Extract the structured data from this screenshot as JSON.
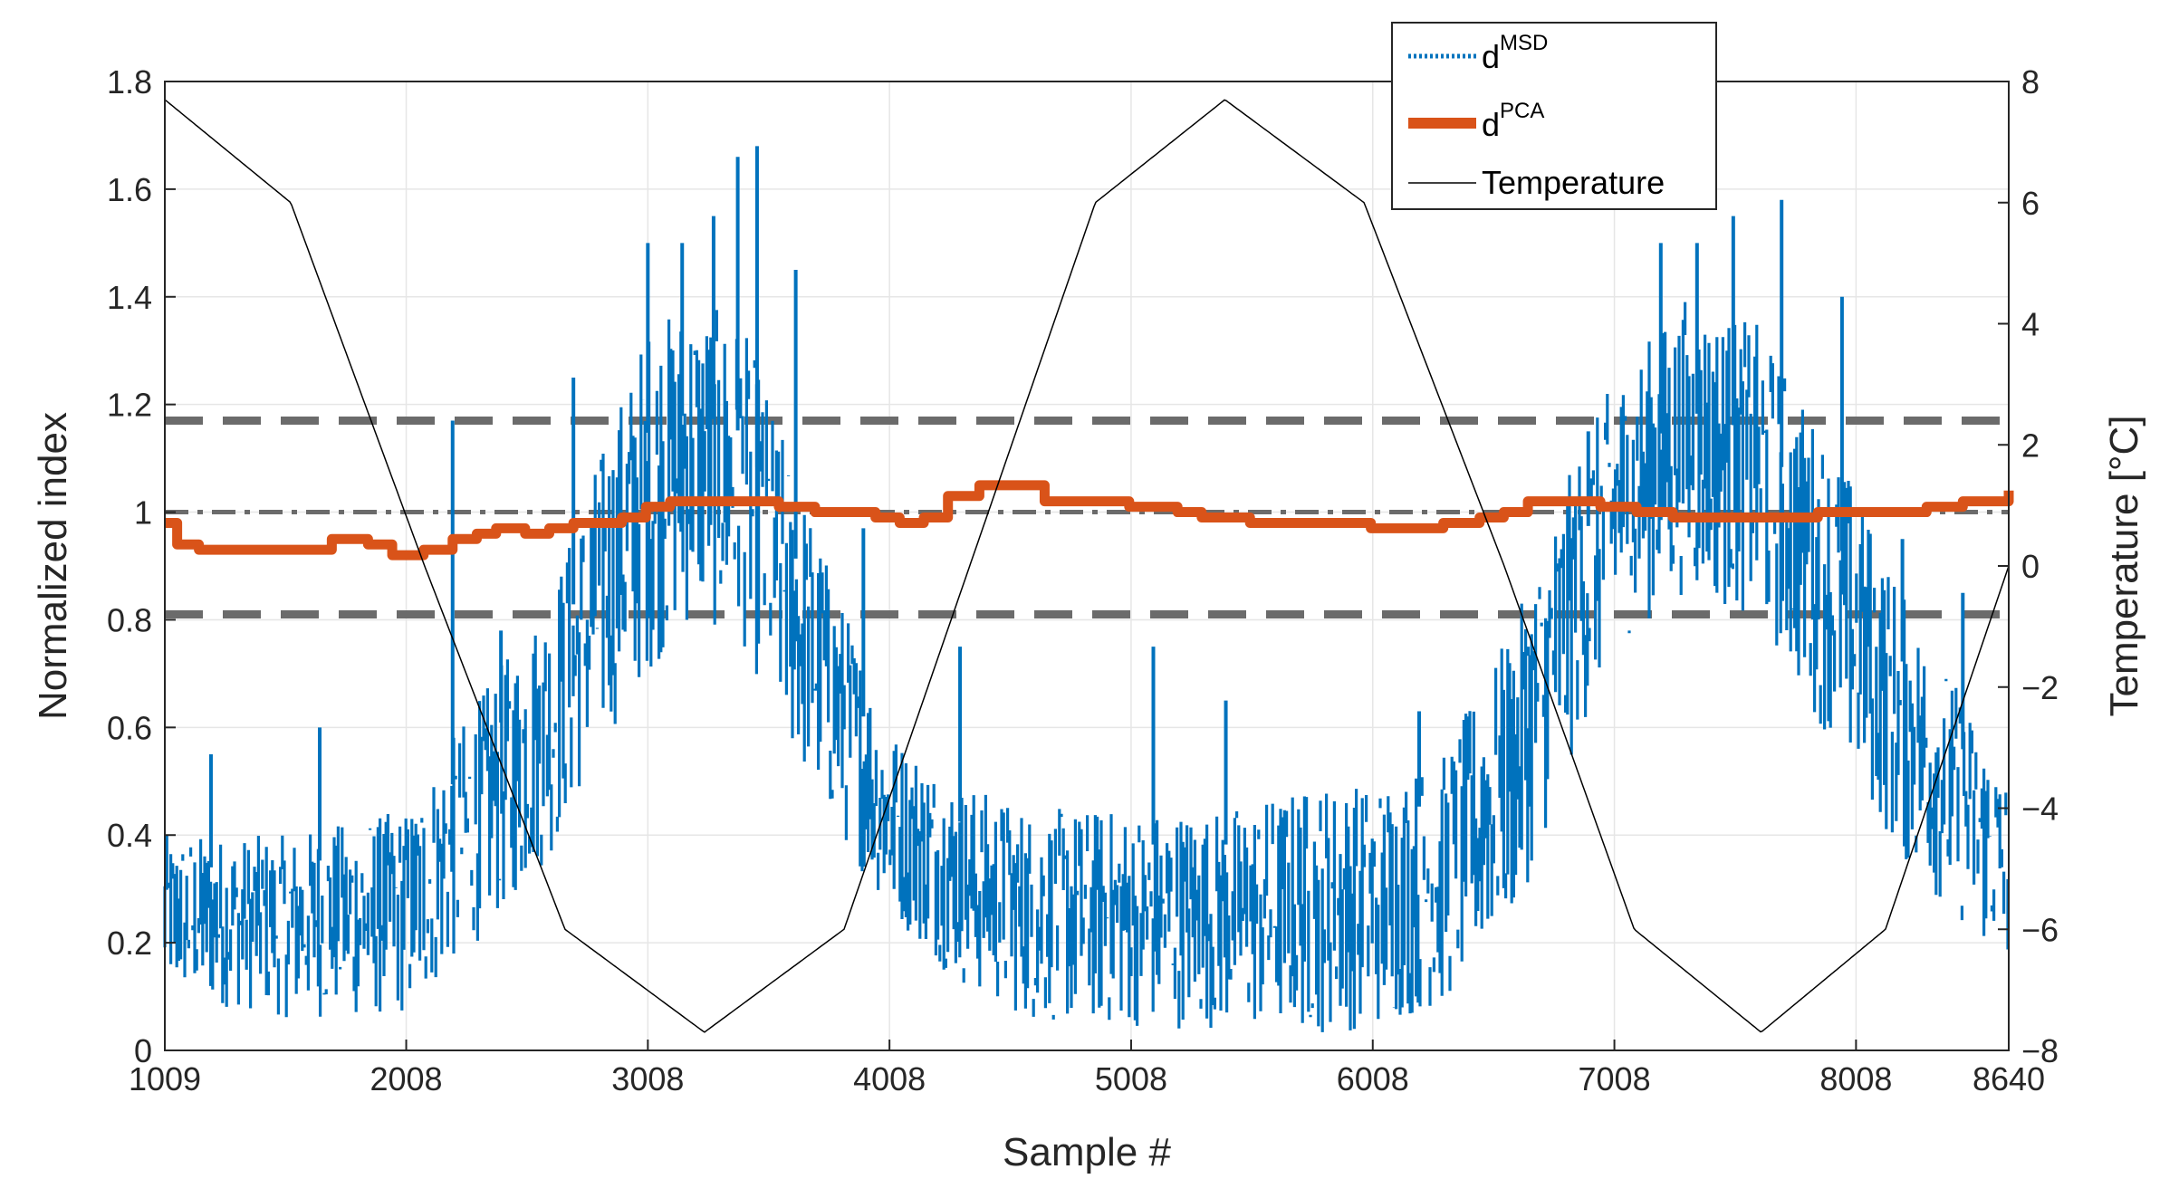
{
  "chart_data": {
    "type": "line",
    "title": "",
    "xlabel": "Sample #",
    "ylabel_left": "Normalized index",
    "ylabel_right": "Temperature [°C]",
    "xlim": [
      1009,
      8640
    ],
    "ylim_left": [
      0,
      1.8
    ],
    "ylim_right": [
      -8,
      8
    ],
    "grid": true,
    "legend_position": "top-right",
    "x_ticks": [
      {
        "value": 1009,
        "label": "1009"
      },
      {
        "value": 2008,
        "label": "2008"
      },
      {
        "value": 3008,
        "label": "3008"
      },
      {
        "value": 4008,
        "label": "4008"
      },
      {
        "value": 5008,
        "label": "5008"
      },
      {
        "value": 6008,
        "label": "6008"
      },
      {
        "value": 7008,
        "label": "7008"
      },
      {
        "value": 8008,
        "label": "8008"
      },
      {
        "value": 8640,
        "label": "8640"
      }
    ],
    "y_left_ticks": [
      {
        "value": 0,
        "label": "0"
      },
      {
        "value": 0.2,
        "label": "0.2"
      },
      {
        "value": 0.4,
        "label": "0.4"
      },
      {
        "value": 0.6,
        "label": "0.6"
      },
      {
        "value": 0.8,
        "label": "0.8"
      },
      {
        "value": 1,
        "label": "1"
      },
      {
        "value": 1.2,
        "label": "1.2"
      },
      {
        "value": 1.4,
        "label": "1.4"
      },
      {
        "value": 1.6,
        "label": "1.6"
      },
      {
        "value": 1.8,
        "label": "1.8"
      }
    ],
    "y_right_ticks": [
      {
        "value": -8,
        "label": "−8"
      },
      {
        "value": -6,
        "label": "−6"
      },
      {
        "value": -4,
        "label": "−4"
      },
      {
        "value": -2,
        "label": "−2"
      },
      {
        "value": 0,
        "label": "0"
      },
      {
        "value": 2,
        "label": "2"
      },
      {
        "value": 4,
        "label": "4"
      },
      {
        "value": 6,
        "label": "6"
      },
      {
        "value": 8,
        "label": "8"
      }
    ],
    "reference_lines": [
      {
        "name": "upper-threshold",
        "value": 1.17,
        "style": "dashed"
      },
      {
        "name": "center-line",
        "value": 1.0,
        "style": "dash-dot"
      },
      {
        "name": "lower-threshold",
        "value": 0.81,
        "style": "dashed"
      }
    ],
    "series": [
      {
        "name": "d^MSD",
        "legend_base": "d",
        "legend_sup": "MSD",
        "axis": "left",
        "style": "dotted-noisy",
        "color": "#0072BD",
        "envelope_x": [
          1009,
          1500,
          2008,
          2300,
          2600,
          2800,
          3008,
          3200,
          3400,
          3600,
          3800,
          4008,
          4300,
          4600,
          5008,
          5400,
          5800,
          6008,
          6300,
          6600,
          6800,
          7008,
          7300,
          7600,
          7800,
          8008,
          8200,
          8400,
          8640
        ],
        "envelope_low": [
          0.1,
          0.06,
          0.06,
          0.2,
          0.35,
          0.55,
          0.7,
          0.8,
          0.75,
          0.55,
          0.4,
          0.25,
          0.12,
          0.05,
          0.04,
          0.04,
          0.03,
          0.04,
          0.08,
          0.25,
          0.5,
          0.75,
          0.85,
          0.8,
          0.65,
          0.5,
          0.35,
          0.25,
          0.15
        ],
        "envelope_high": [
          0.4,
          0.4,
          0.45,
          0.65,
          0.85,
          1.1,
          1.35,
          1.4,
          1.35,
          1.1,
          0.85,
          0.6,
          0.5,
          0.45,
          0.45,
          0.45,
          0.5,
          0.5,
          0.55,
          0.8,
          1.05,
          1.25,
          1.4,
          1.35,
          1.2,
          1.05,
          0.85,
          0.7,
          0.5
        ],
        "spikes": [
          [
            1200,
            0.55
          ],
          [
            1650,
            0.6
          ],
          [
            2200,
            1.17
          ],
          [
            2400,
            0.78
          ],
          [
            2700,
            1.25
          ],
          [
            3008,
            1.5
          ],
          [
            3150,
            1.5
          ],
          [
            3280,
            1.55
          ],
          [
            3380,
            1.66
          ],
          [
            3460,
            1.68
          ],
          [
            3620,
            1.45
          ],
          [
            3900,
            0.97
          ],
          [
            4300,
            0.75
          ],
          [
            5100,
            0.75
          ],
          [
            5400,
            0.65
          ],
          [
            6200,
            0.63
          ],
          [
            6650,
            0.75
          ],
          [
            6900,
            1.15
          ],
          [
            7200,
            1.5
          ],
          [
            7350,
            1.5
          ],
          [
            7500,
            1.55
          ],
          [
            7700,
            1.58
          ],
          [
            7950,
            1.4
          ],
          [
            8200,
            0.95
          ],
          [
            8450,
            0.85
          ]
        ]
      },
      {
        "name": "d^PCA",
        "legend_base": "d",
        "legend_sup": "PCA",
        "axis": "left",
        "style": "solid-thick-step",
        "color": "#D95319",
        "x": [
          1009,
          1060,
          1150,
          1400,
          1600,
          1700,
          1850,
          1950,
          2080,
          2200,
          2300,
          2380,
          2500,
          2600,
          2700,
          2800,
          2900,
          3000,
          3100,
          3300,
          3450,
          3550,
          3700,
          3850,
          3950,
          4050,
          4150,
          4250,
          4380,
          4500,
          4650,
          4800,
          5000,
          5200,
          5300,
          5500,
          5700,
          5850,
          6000,
          6100,
          6300,
          6450,
          6550,
          6650,
          6800,
          6950,
          7100,
          7250,
          7400,
          7550,
          7700,
          7850,
          8000,
          8150,
          8300,
          8450,
          8640
        ],
        "values": [
          0.98,
          0.94,
          0.93,
          0.93,
          0.93,
          0.95,
          0.94,
          0.92,
          0.93,
          0.95,
          0.96,
          0.97,
          0.96,
          0.97,
          0.98,
          0.98,
          0.99,
          1.01,
          1.02,
          1.02,
          1.02,
          1.01,
          1.0,
          1.0,
          0.99,
          0.98,
          0.99,
          1.03,
          1.05,
          1.05,
          1.02,
          1.02,
          1.01,
          1.0,
          0.99,
          0.98,
          0.98,
          0.98,
          0.97,
          0.97,
          0.98,
          0.99,
          1.0,
          1.02,
          1.02,
          1.01,
          1.0,
          0.99,
          0.99,
          0.99,
          0.99,
          1.0,
          1.0,
          1.0,
          1.01,
          1.02,
          1.04
        ]
      },
      {
        "name": "Temperature",
        "legend_base": "Temperature",
        "legend_sup": "",
        "axis": "right",
        "style": "solid-thin",
        "color": "#000000",
        "x": [
          1009,
          1530,
          2084,
          2665,
          3242,
          3820,
          4340,
          4860,
          5396,
          5972,
          6552,
          7090,
          7615,
          8130,
          8640
        ],
        "values": [
          7.7,
          6.0,
          0.0,
          -6.0,
          -7.7,
          -6.0,
          0.0,
          6.0,
          7.7,
          6.0,
          0.0,
          -6.0,
          -7.7,
          -6.0,
          0.0
        ]
      }
    ]
  }
}
